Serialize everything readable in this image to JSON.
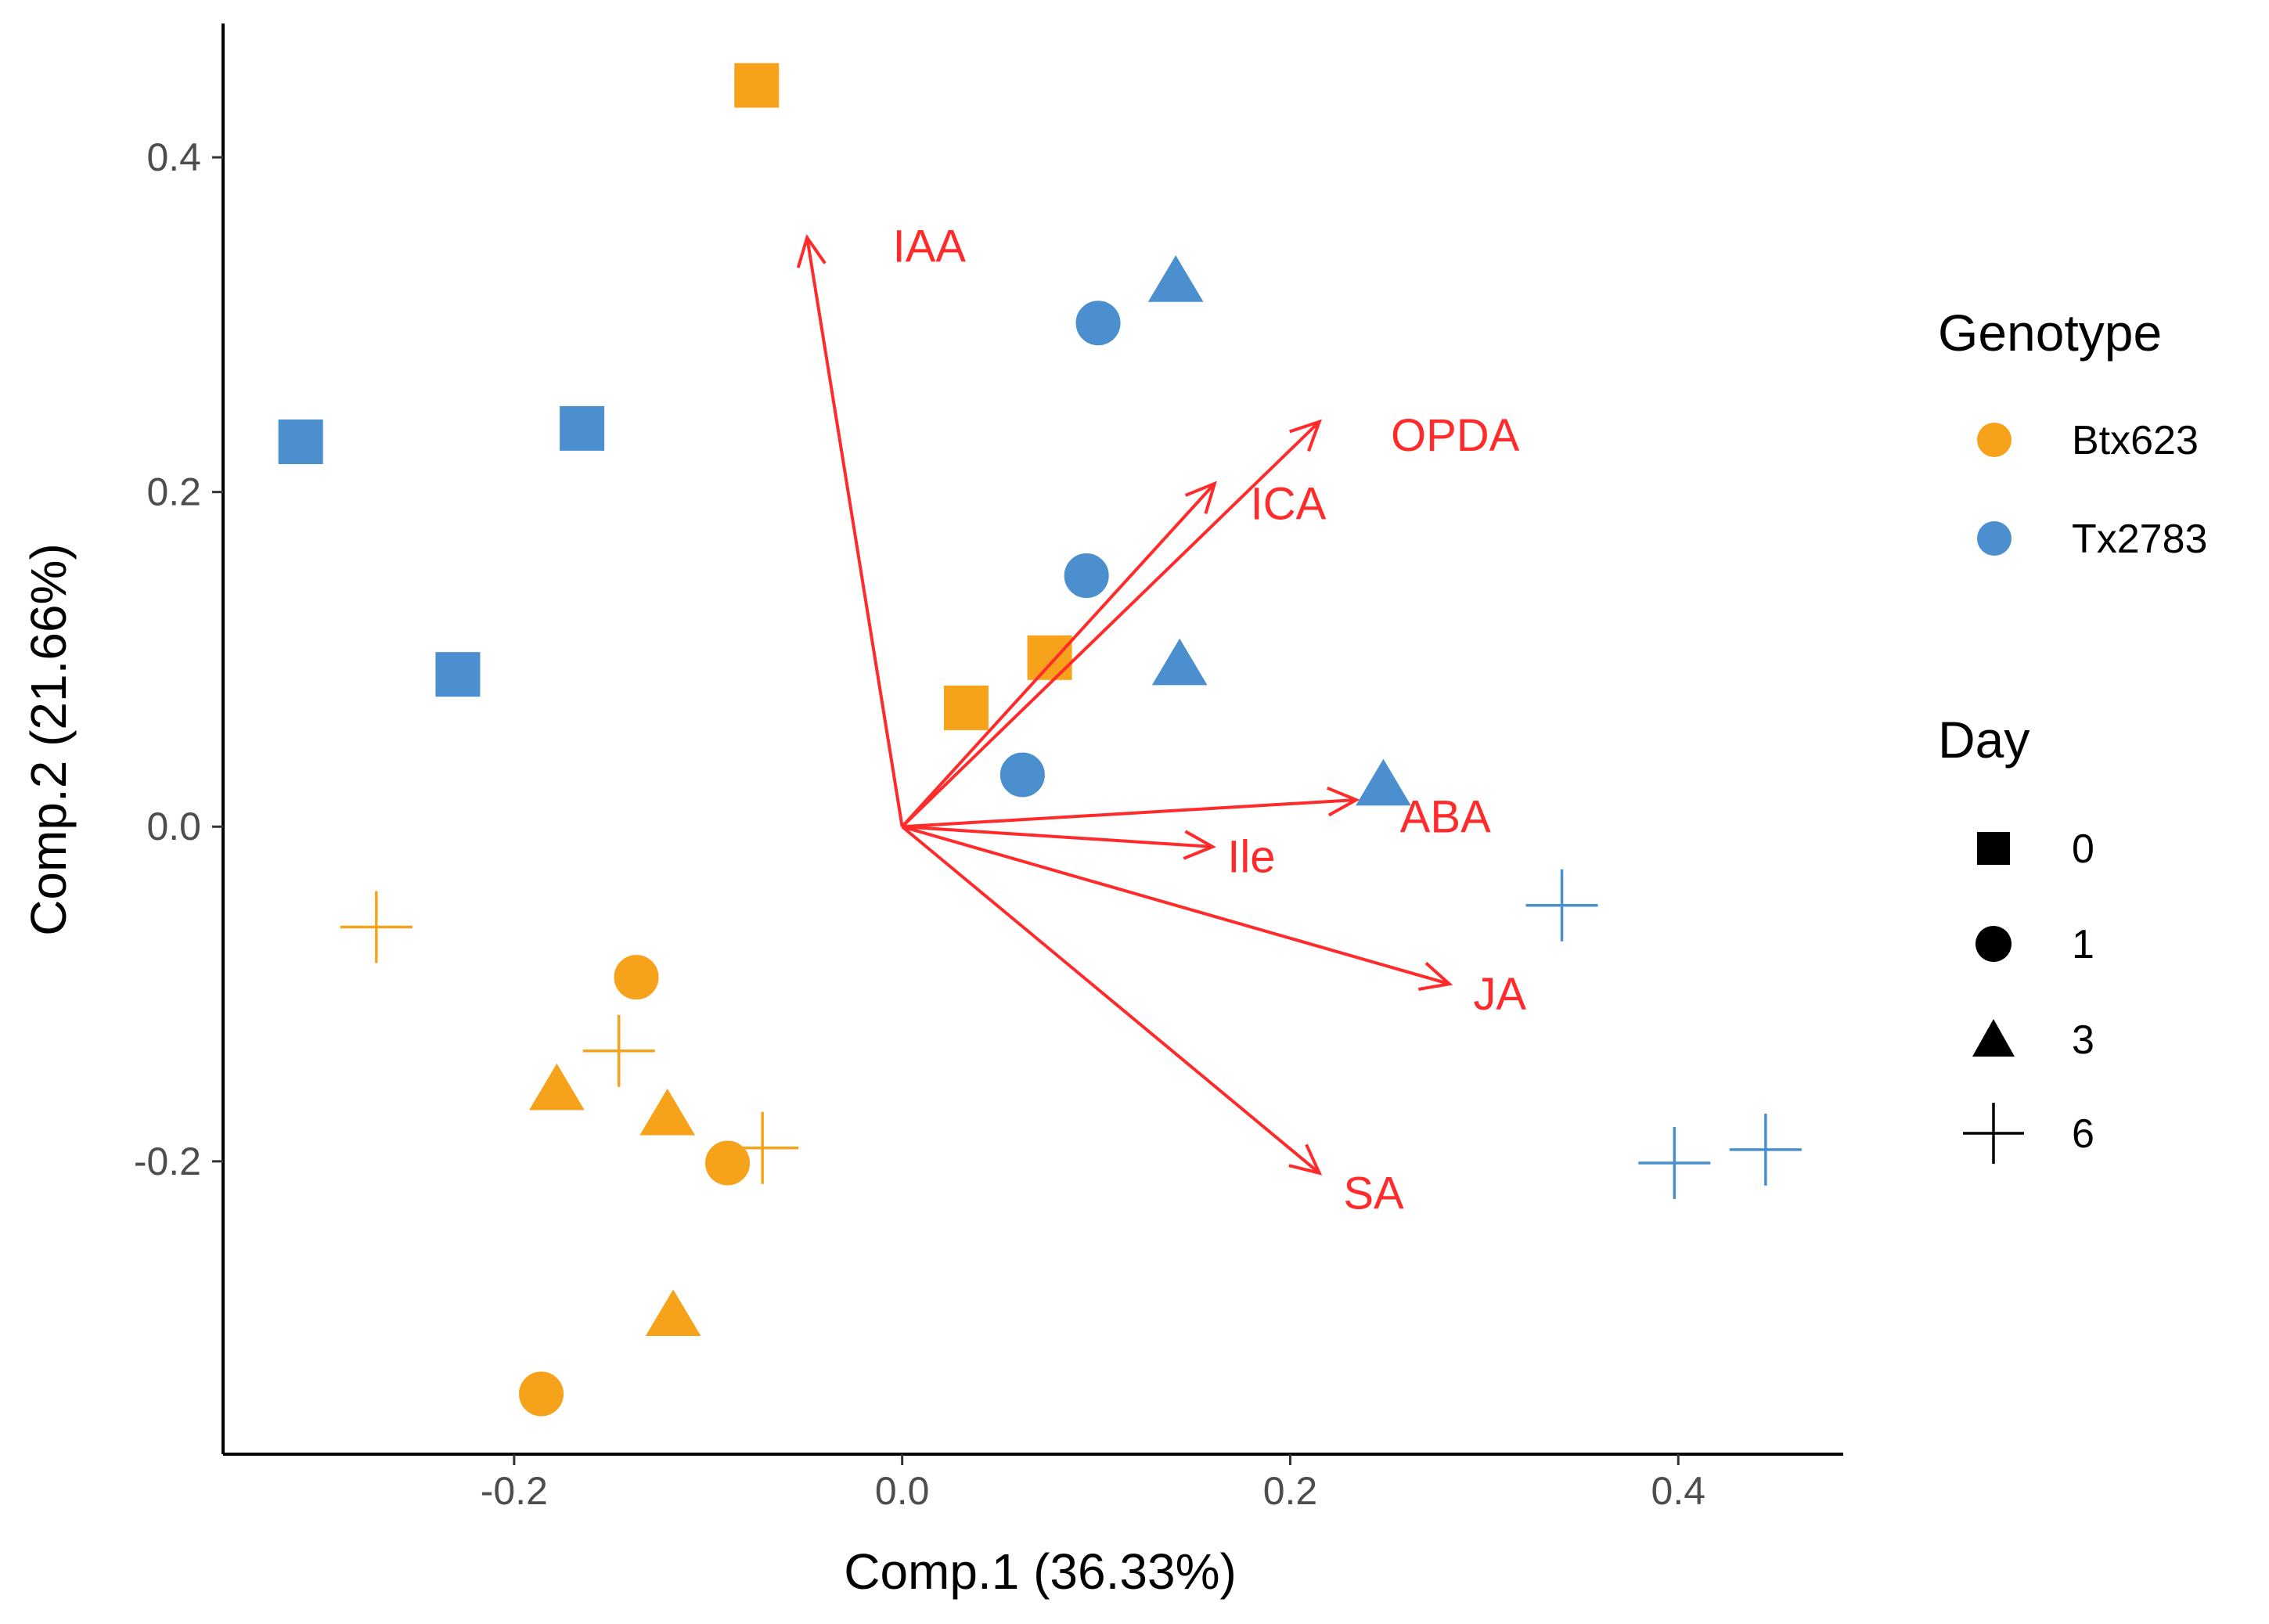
{
  "chart_data": {
    "type": "scatter",
    "xlabel": "Comp.1 (36.33%)",
    "ylabel": "Comp.2 (21.66%)",
    "xlim": [
      -0.35,
      0.485
    ],
    "ylim": [
      -0.375,
      0.48
    ],
    "xticks": [
      -0.2,
      0.0,
      0.2,
      0.4
    ],
    "yticks": [
      -0.2,
      0.0,
      0.2,
      0.4
    ],
    "xtick_labels": [
      "-0.2",
      "0.0",
      "0.2",
      "0.4"
    ],
    "ytick_labels": [
      "-0.2",
      "0.0",
      "0.2",
      "0.4"
    ],
    "grid": false,
    "legend_position": "right",
    "colors": {
      "Btx623": "#f7a21b",
      "Tx2783": "#4b8fcf",
      "arrow": "#ff2a2a"
    },
    "legends": {
      "genotype": {
        "title": "Genotype",
        "items": [
          "Btx623",
          "Tx2783"
        ]
      },
      "day": {
        "title": "Day",
        "items": [
          "0",
          "1",
          "3",
          "6"
        ]
      }
    },
    "points": [
      {
        "genotype": "Btx623",
        "day": "0",
        "x": -0.075,
        "y": 0.443
      },
      {
        "genotype": "Btx623",
        "day": "0",
        "x": 0.076,
        "y": 0.101
      },
      {
        "genotype": "Btx623",
        "day": "0",
        "x": 0.033,
        "y": 0.071
      },
      {
        "genotype": "Btx623",
        "day": "1",
        "x": -0.137,
        "y": -0.09
      },
      {
        "genotype": "Btx623",
        "day": "1",
        "x": -0.09,
        "y": -0.201
      },
      {
        "genotype": "Btx623",
        "day": "1",
        "x": -0.186,
        "y": -0.339
      },
      {
        "genotype": "Btx623",
        "day": "3",
        "x": -0.178,
        "y": -0.157
      },
      {
        "genotype": "Btx623",
        "day": "3",
        "x": -0.121,
        "y": -0.172
      },
      {
        "genotype": "Btx623",
        "day": "3",
        "x": -0.118,
        "y": -0.292
      },
      {
        "genotype": "Btx623",
        "day": "6",
        "x": -0.271,
        "y": -0.06
      },
      {
        "genotype": "Btx623",
        "day": "6",
        "x": -0.146,
        "y": -0.134
      },
      {
        "genotype": "Btx623",
        "day": "6",
        "x": -0.072,
        "y": -0.192
      },
      {
        "genotype": "Tx2783",
        "day": "0",
        "x": -0.31,
        "y": 0.23
      },
      {
        "genotype": "Tx2783",
        "day": "0",
        "x": -0.165,
        "y": 0.238
      },
      {
        "genotype": "Tx2783",
        "day": "0",
        "x": -0.229,
        "y": 0.091
      },
      {
        "genotype": "Tx2783",
        "day": "1",
        "x": 0.101,
        "y": 0.301
      },
      {
        "genotype": "Tx2783",
        "day": "1",
        "x": 0.095,
        "y": 0.15
      },
      {
        "genotype": "Tx2783",
        "day": "1",
        "x": 0.062,
        "y": 0.031
      },
      {
        "genotype": "Tx2783",
        "day": "3",
        "x": 0.141,
        "y": 0.326
      },
      {
        "genotype": "Tx2783",
        "day": "3",
        "x": 0.143,
        "y": 0.097
      },
      {
        "genotype": "Tx2783",
        "day": "3",
        "x": 0.248,
        "y": 0.025
      },
      {
        "genotype": "Tx2783",
        "day": "6",
        "x": 0.34,
        "y": -0.047
      },
      {
        "genotype": "Tx2783",
        "day": "6",
        "x": 0.398,
        "y": -0.201
      },
      {
        "genotype": "Tx2783",
        "day": "6",
        "x": 0.445,
        "y": -0.193
      }
    ],
    "loadings": [
      {
        "name": "IAA",
        "x": -0.049,
        "y": 0.352,
        "label_x": 0.014,
        "label_y": 0.347
      },
      {
        "name": "OPDA",
        "x": 0.215,
        "y": 0.242,
        "label_x": 0.285,
        "label_y": 0.234
      },
      {
        "name": "ICA",
        "x": 0.161,
        "y": 0.205,
        "label_x": 0.199,
        "label_y": 0.193
      },
      {
        "name": "ABA",
        "x": 0.234,
        "y": 0.016,
        "label_x": 0.28,
        "label_y": 0.006
      },
      {
        "name": "Ile",
        "x": 0.16,
        "y": -0.012,
        "label_x": 0.18,
        "label_y": -0.018
      },
      {
        "name": "JA",
        "x": 0.282,
        "y": -0.094,
        "label_x": 0.308,
        "label_y": -0.1
      },
      {
        "name": "SA",
        "x": 0.215,
        "y": -0.207,
        "label_x": 0.243,
        "label_y": -0.219
      }
    ]
  }
}
